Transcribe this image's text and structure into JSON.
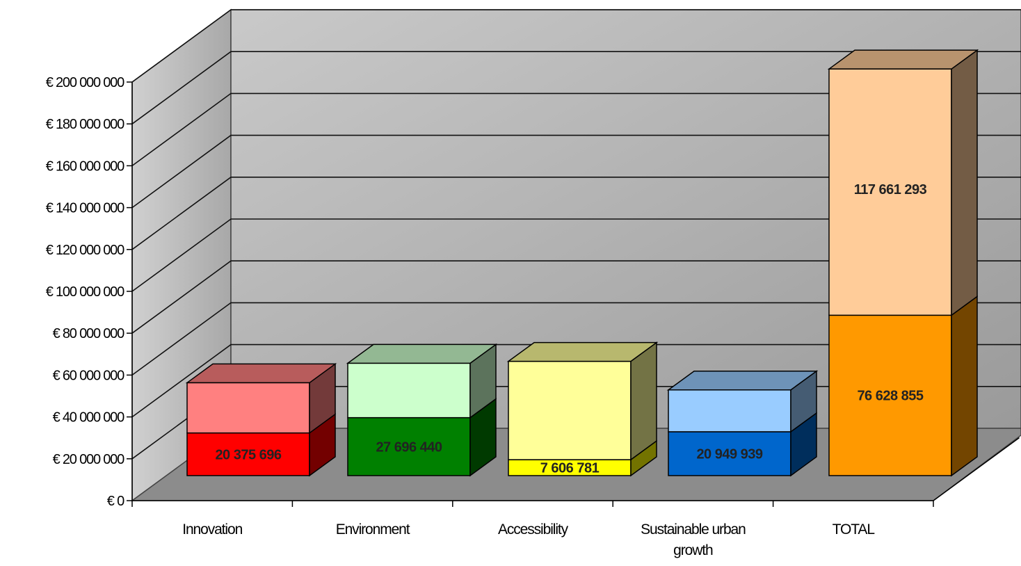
{
  "chart_data": {
    "type": "bar",
    "stacked": true,
    "three_d": true,
    "title": "",
    "xlabel": "",
    "ylabel": "",
    "categories": [
      "Innovation",
      "Environment",
      "Accessibility",
      "Sustainable urban growth",
      "TOTAL"
    ],
    "category_lines": [
      [
        "Innovation"
      ],
      [
        "Environment"
      ],
      [
        "Accessibility"
      ],
      [
        "Sustainable urban",
        "growth"
      ],
      [
        "TOTAL"
      ]
    ],
    "series": [
      {
        "values": [
          20375696,
          27696440,
          7606781,
          20949939,
          76628855
        ],
        "labels": [
          "20 375 696",
          "27 696 440",
          "7 606 781",
          "20 949 939",
          "76 628 855"
        ]
      },
      {
        "values": [
          24000000,
          26000000,
          47000000,
          20000000,
          117661293
        ],
        "labels": [
          "",
          "",
          "",
          "",
          "117 661 293"
        ]
      }
    ],
    "ylim": [
      0,
      200000000
    ],
    "yticks": [
      0,
      20000000,
      40000000,
      60000000,
      80000000,
      100000000,
      120000000,
      140000000,
      160000000,
      180000000,
      200000000
    ],
    "ytick_labels": [
      "€ 0",
      "€ 20 000 000",
      "€ 40 000 000",
      "€ 60 000 000",
      "€ 80 000 000",
      "€ 100 000 000",
      "€ 120 000 000",
      "€ 140 000 000",
      "€ 160 000 000",
      "€ 180 000 000",
      "€ 200 000 000"
    ],
    "grid": true,
    "legend": "none",
    "colors": {
      "bottom": [
        "#ff0000",
        "#008000",
        "#ffff00",
        "#0066cc",
        "#ff9900"
      ],
      "top": [
        "#ff8080",
        "#ccffcc",
        "#ffff99",
        "#99ccff",
        "#ffcc99"
      ],
      "back_wall": "#a6a6a6",
      "side_wall": "#b4b4b4",
      "floor": "#8c8c8c"
    }
  }
}
